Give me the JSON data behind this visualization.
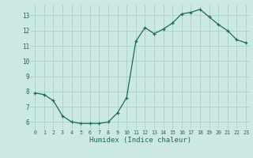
{
  "x": [
    0,
    1,
    2,
    3,
    4,
    5,
    6,
    7,
    8,
    9,
    10,
    11,
    12,
    13,
    14,
    15,
    16,
    17,
    18,
    19,
    20,
    21,
    22,
    23
  ],
  "y": [
    7.9,
    7.8,
    7.4,
    6.4,
    6.0,
    5.9,
    5.9,
    5.9,
    6.0,
    6.6,
    7.6,
    11.3,
    12.2,
    11.8,
    12.1,
    12.5,
    13.1,
    13.2,
    13.4,
    12.9,
    12.4,
    12.0,
    11.4,
    11.2
  ],
  "color": "#1a6b5a",
  "bg_color": "#cce8e4",
  "grid_color": "#aacfcb",
  "xlabel": "Humidex (Indice chaleur)",
  "ylim": [
    5.5,
    13.7
  ],
  "xlim": [
    -0.5,
    23.5
  ],
  "yticks": [
    6,
    7,
    8,
    9,
    10,
    11,
    12,
    13
  ],
  "xticks": [
    0,
    1,
    2,
    3,
    4,
    5,
    6,
    7,
    8,
    9,
    10,
    11,
    12,
    13,
    14,
    15,
    16,
    17,
    18,
    19,
    20,
    21,
    22,
    23
  ]
}
